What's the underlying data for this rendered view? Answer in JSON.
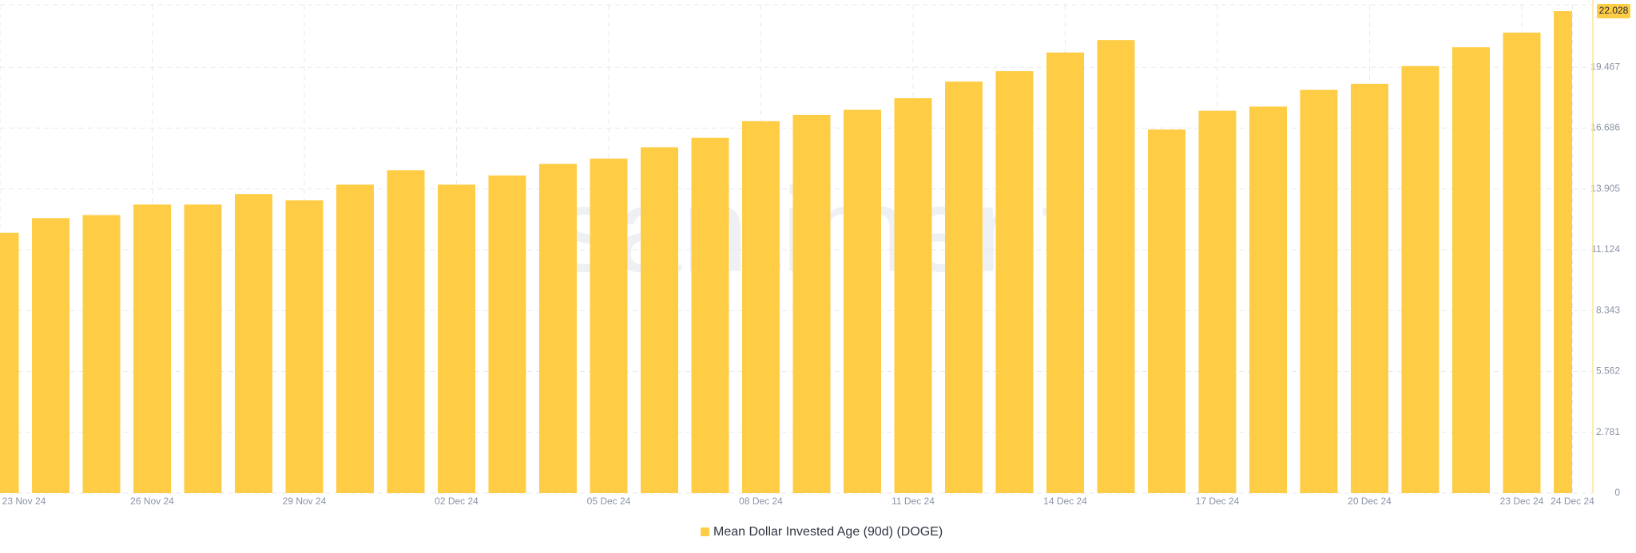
{
  "chart_data": {
    "type": "bar",
    "categories": [
      "23 Nov 24",
      null,
      null,
      "26 Nov 24",
      null,
      null,
      "29 Nov 24",
      null,
      null,
      "02 Dec 24",
      null,
      null,
      "05 Dec 24",
      null,
      null,
      "08 Dec 24",
      null,
      null,
      "11 Dec 24",
      null,
      null,
      "14 Dec 24",
      null,
      null,
      "17 Dec 24",
      null,
      null,
      "20 Dec 24",
      null,
      null,
      "23 Dec 24",
      "24 Dec 24"
    ],
    "series": [
      {
        "name": "Mean Dollar Invested Age (90d) (DOGE)",
        "color": "#ffcd45",
        "values": [
          11.9,
          12.57,
          12.71,
          13.19,
          13.19,
          13.67,
          13.38,
          14.1,
          14.76,
          14.1,
          14.52,
          15.05,
          15.29,
          15.81,
          16.24,
          17.0,
          17.29,
          17.52,
          18.05,
          18.81,
          19.29,
          20.14,
          20.71,
          16.62,
          17.48,
          17.67,
          18.43,
          18.71,
          19.52,
          20.38,
          21.05,
          22.028
        ]
      }
    ],
    "ylim": [
      0,
      22.028
    ],
    "yticks": [
      0,
      2.781,
      5.562,
      8.343,
      11.124,
      13.905,
      16.686,
      19.467
    ],
    "grid": true,
    "watermark": "santiment"
  }
}
